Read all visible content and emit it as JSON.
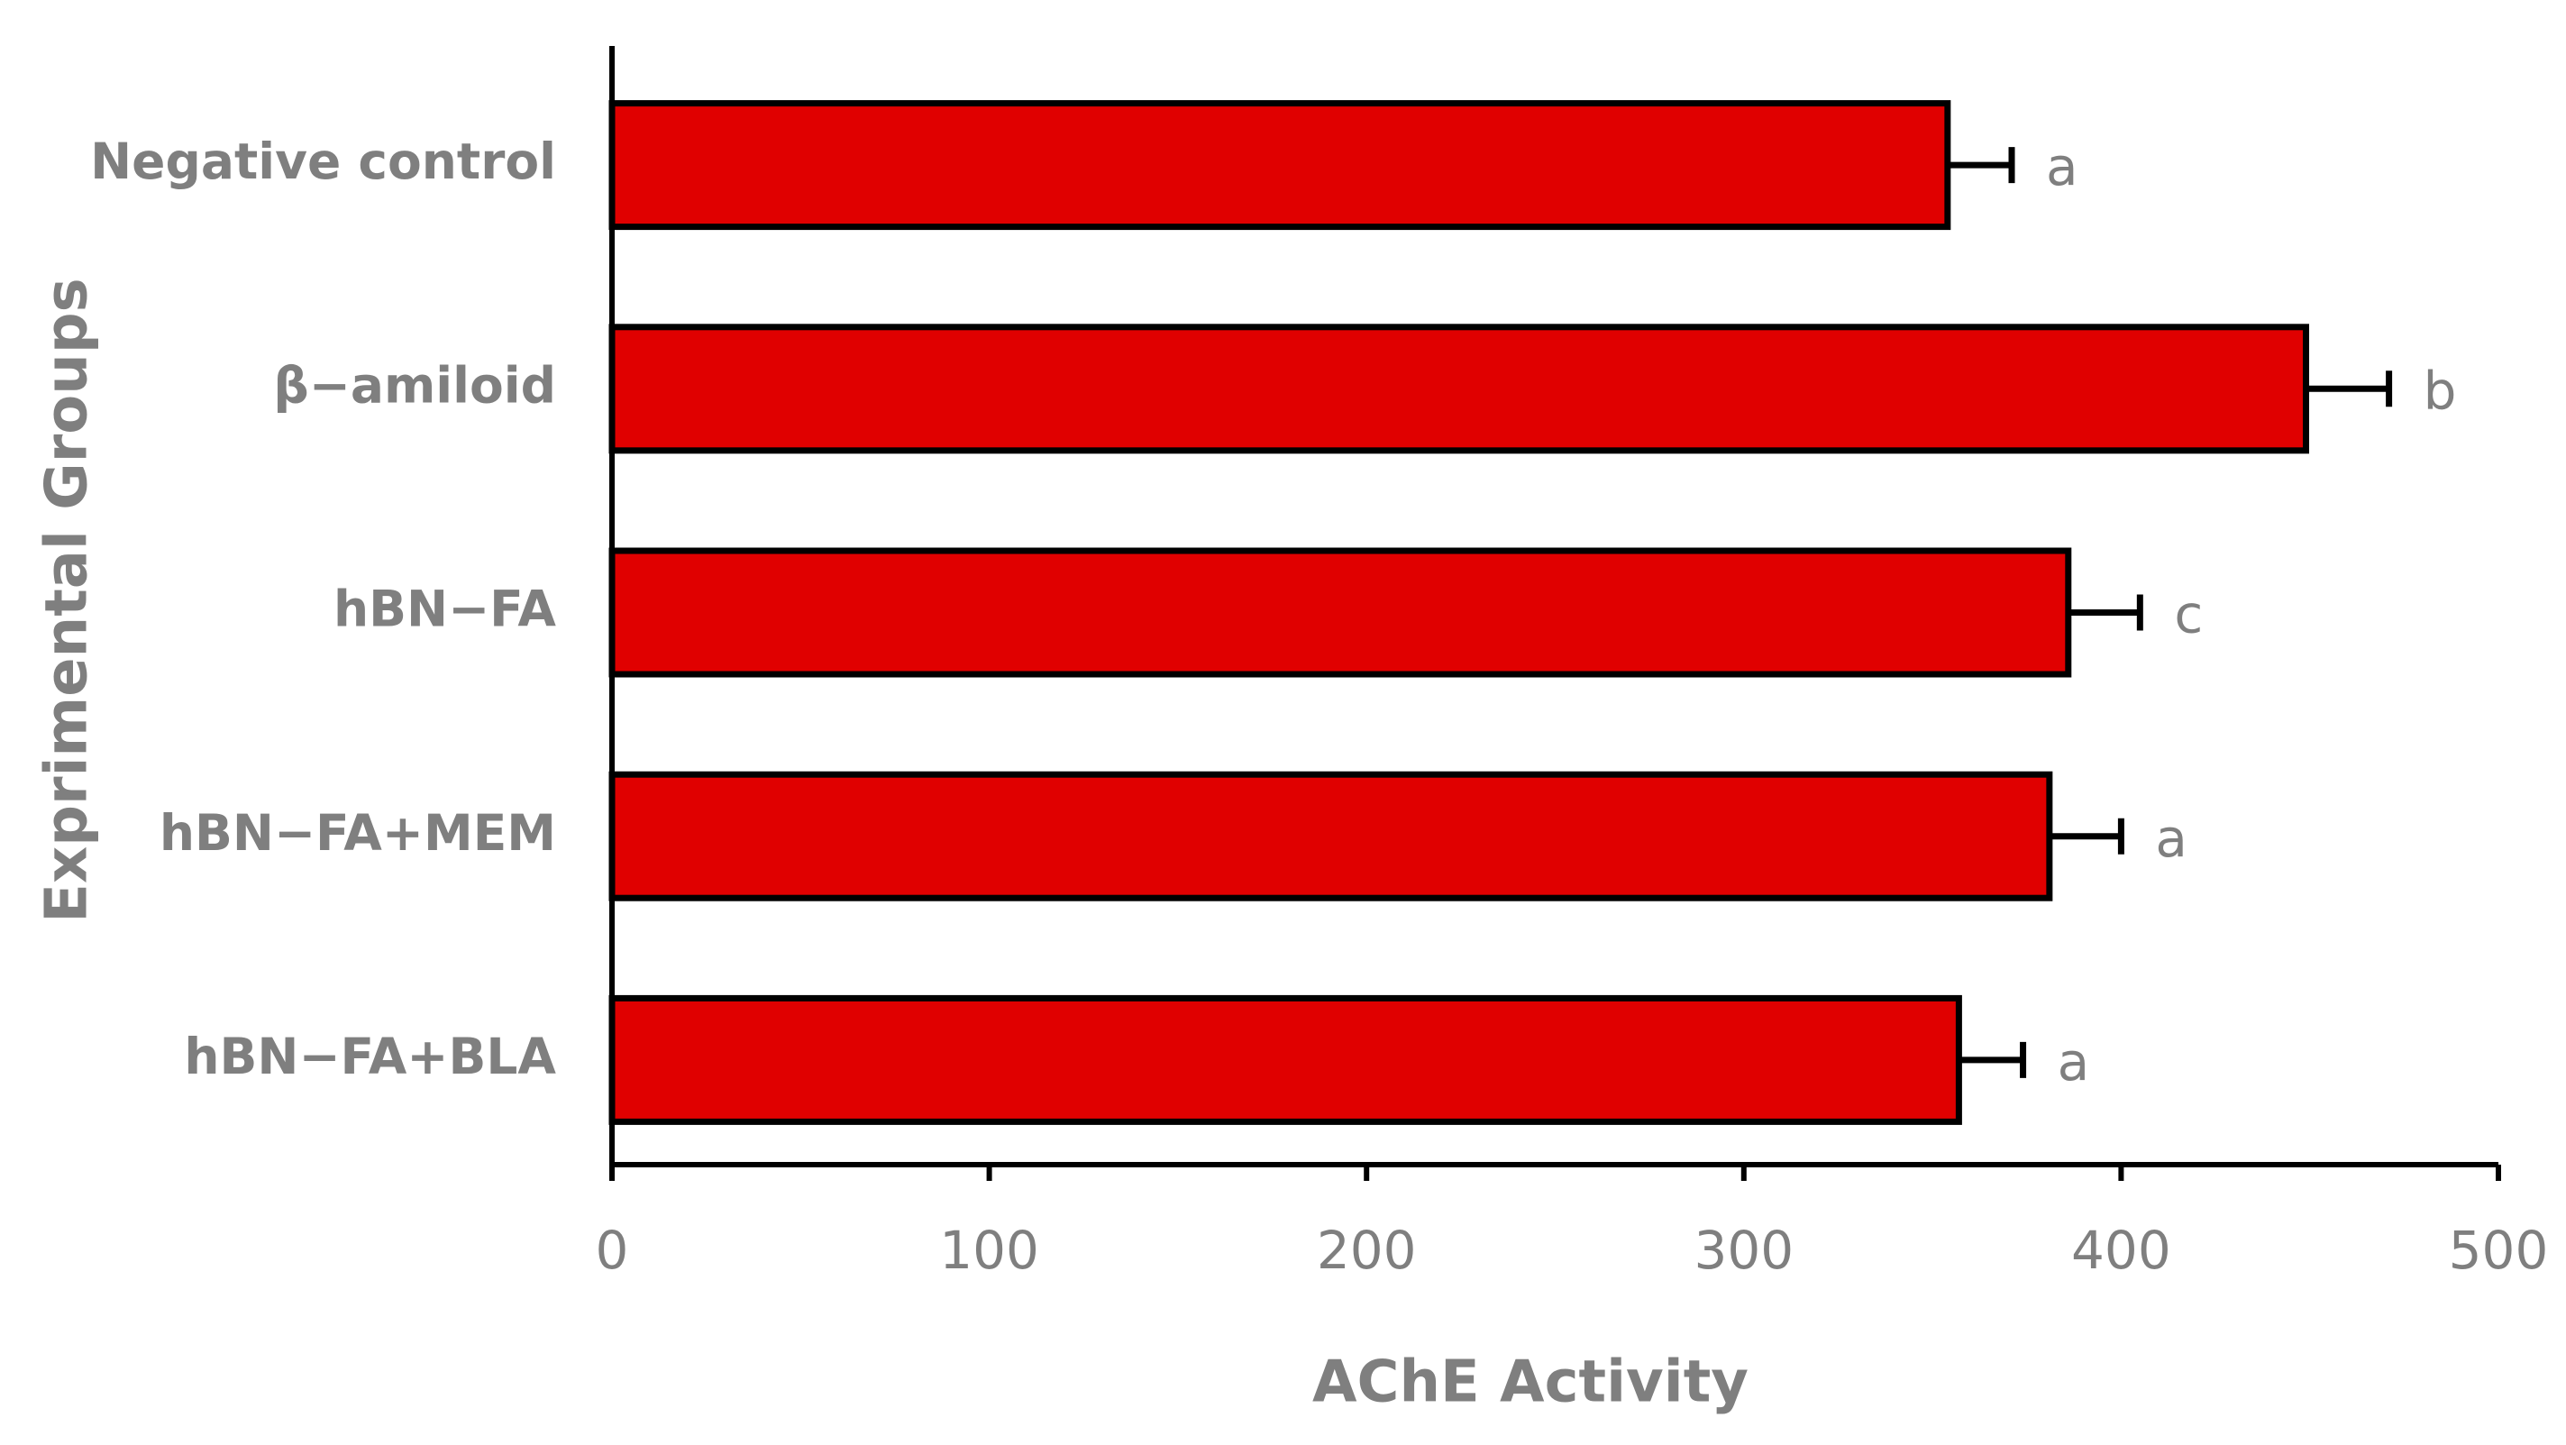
{
  "chart_data": {
    "type": "hbar",
    "x_label": "AChE Activity",
    "y_label": "Exprimental Groups",
    "categories": [
      "Negative control",
      "β−amiloid",
      "hBN−FA",
      "hBN−FA+MEM",
      "hBN−FA+BLA"
    ],
    "values": [
      354,
      449,
      386,
      381,
      357
    ],
    "errors": [
      17,
      22,
      19,
      19,
      17
    ],
    "letters": [
      "a",
      "b",
      "c",
      "a",
      "a"
    ],
    "color": "#e00000",
    "xlim": [
      0,
      500
    ],
    "xticks": [
      0,
      100,
      200,
      300,
      400,
      500
    ]
  }
}
